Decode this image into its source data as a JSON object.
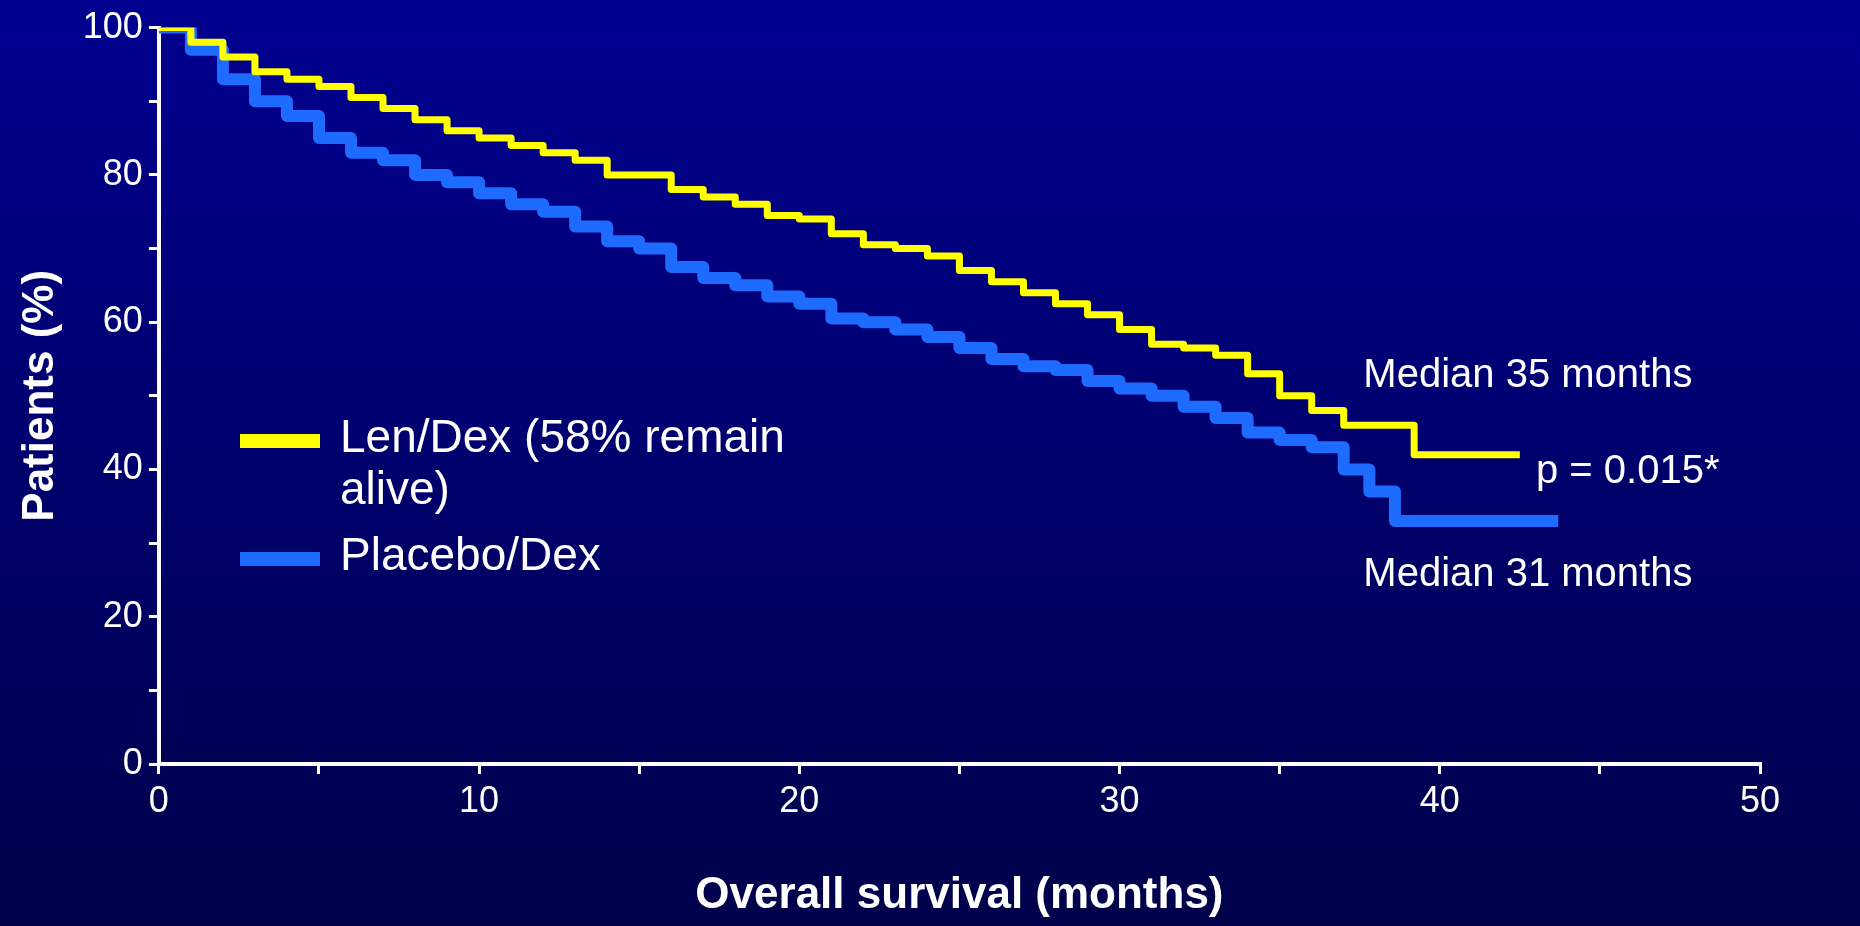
{
  "chart_data": {
    "type": "step",
    "xlabel": "Overall survival (months)",
    "ylabel": "Patients (%)",
    "xlim": [
      0,
      50
    ],
    "xticks": [
      0,
      {
        "value": 5,
        "label": null
      },
      10,
      {
        "value": 15,
        "label": null
      },
      20,
      {
        "value": 25,
        "label": null
      },
      30,
      {
        "value": 35,
        "label": null
      },
      40,
      {
        "value": 45,
        "label": null
      },
      50
    ],
    "ylim": [
      0,
      100
    ],
    "yticks": [
      0,
      {
        "value": 10,
        "label": null
      },
      20,
      {
        "value": 30,
        "label": null
      },
      40,
      {
        "value": 50,
        "label": null
      },
      60,
      {
        "value": 70,
        "label": null
      },
      80,
      {
        "value": 90,
        "label": null
      },
      100
    ],
    "legend": "left",
    "marker": "none",
    "line_style": "solid",
    "annotations": [
      "Median 35 months",
      "p = 0.015*",
      "Median 31 months"
    ],
    "series": [
      {
        "name": "Len/Dex (58% remain alive)",
        "color": "#ffff00",
        "x": [
          0,
          1,
          2,
          3,
          4,
          5,
          6,
          7,
          8,
          9,
          10,
          11,
          12,
          13,
          14,
          15,
          16,
          17,
          18,
          19,
          20,
          21,
          22,
          23,
          24,
          25,
          26,
          27,
          28,
          29,
          30,
          31,
          32,
          33,
          34,
          35,
          36,
          37,
          38,
          39.2,
          42.5
        ],
        "values": [
          100,
          98,
          96,
          94,
          93,
          92,
          90.5,
          89,
          87.5,
          86,
          85,
          84,
          83,
          82,
          80,
          80,
          78,
          77,
          76,
          74.5,
          74,
          72,
          70.5,
          70,
          69,
          67,
          65.5,
          64,
          62.5,
          61,
          59,
          57,
          56.5,
          55.5,
          53,
          50,
          48,
          46,
          46,
          42,
          42
        ]
      },
      {
        "name": "Placebo/Dex",
        "color": "#1e6bff",
        "x": [
          0,
          1,
          2,
          3,
          4,
          5,
          6,
          7,
          8,
          9,
          10,
          11,
          12,
          13,
          14,
          15,
          16,
          17,
          18,
          19,
          20,
          21,
          22,
          23,
          24,
          25,
          26,
          27,
          28,
          29,
          30,
          31,
          32,
          33,
          34,
          35,
          36,
          37,
          37.8,
          38.6,
          43.7
        ],
        "values": [
          100,
          97,
          93,
          90,
          88,
          85,
          83,
          82,
          80,
          79,
          77.5,
          76,
          75,
          73,
          71,
          70,
          67.5,
          66,
          65,
          63.5,
          62.5,
          60.5,
          60,
          59,
          58,
          56.5,
          55,
          54,
          53.5,
          52,
          51,
          50,
          48.5,
          47,
          45,
          44,
          43,
          40,
          37,
          33,
          33
        ]
      }
    ]
  }
}
